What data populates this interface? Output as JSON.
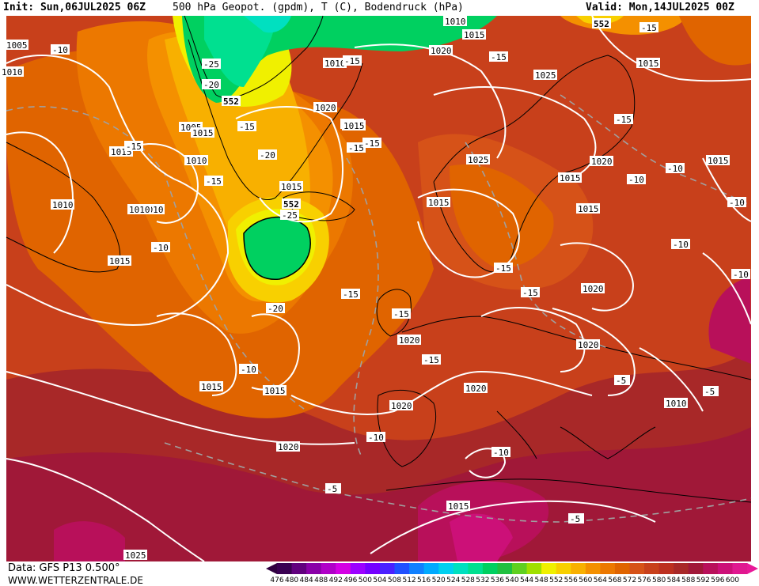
{
  "header": {
    "init": "Init: Sun,06JUL2025 06Z",
    "title": "500 hPa Geopot. (gpdm), T (C), Bodendruck (hPa)",
    "valid": "Valid: Mon,14JUL2025 00Z"
  },
  "footer": {
    "data_source": "Data: GFS P13 0.500°",
    "website": "WWW.WETTERZENTRALE.DE"
  },
  "colorbar": {
    "ticks": [
      "476",
      "480",
      "484",
      "488",
      "492",
      "496",
      "500",
      "504",
      "508",
      "512",
      "516",
      "520",
      "524",
      "528",
      "532",
      "536",
      "540",
      "544",
      "548",
      "552",
      "556",
      "560",
      "564",
      "568",
      "572",
      "576",
      "580",
      "584",
      "588",
      "592",
      "596",
      "600"
    ],
    "colors": [
      "#3a0052",
      "#62007e",
      "#8a00a8",
      "#b000c8",
      "#d400e4",
      "#9b00ff",
      "#7400ff",
      "#4a20ff",
      "#2050ff",
      "#1080ff",
      "#00aaff",
      "#00d0f0",
      "#00e0c0",
      "#00e090",
      "#00d060",
      "#20c040",
      "#60d020",
      "#a0e000",
      "#f0f000",
      "#f8d000",
      "#f8b000",
      "#f49000",
      "#ec7800",
      "#e06400",
      "#d65218",
      "#c8401b",
      "#bc3020",
      "#a82828",
      "#a01838",
      "#b8105a",
      "#cc1078",
      "#e01890"
    ]
  },
  "contour_labels": {
    "pressure": [
      "1005",
      "1010",
      "1015",
      "1010",
      "1010",
      "1015",
      "1015",
      "1010",
      "1005",
      "1010",
      "1015",
      "1020",
      "1025",
      "1010",
      "1015",
      "1020",
      "1015",
      "1015",
      "1020",
      "1025",
      "1015",
      "1020",
      "1015",
      "1015",
      "1015",
      "1020",
      "1020",
      "1020",
      "1015",
      "1020",
      "1010",
      "1015",
      "1010",
      "1020",
      "1015",
      "1025",
      "1015"
    ],
    "temperature": [
      "-10",
      "-25",
      "-20",
      "-15",
      "-15",
      "-20",
      "-15",
      "-15",
      "-15",
      "-25",
      "-20",
      "-10",
      "-15",
      "-15",
      "-15",
      "-15",
      "-15",
      "-15",
      "-10",
      "-10",
      "-10",
      "-15",
      "-10",
      "-10",
      "-10",
      "-10",
      "-5",
      "-5",
      "-5",
      "-10",
      "-5",
      "-15",
      "-15"
    ],
    "geopotential": [
      "552",
      "552",
      "552"
    ]
  },
  "colors": {
    "land_line": "#000000",
    "isobar": "#ffffff",
    "isotherm": "#a0a0a0"
  }
}
